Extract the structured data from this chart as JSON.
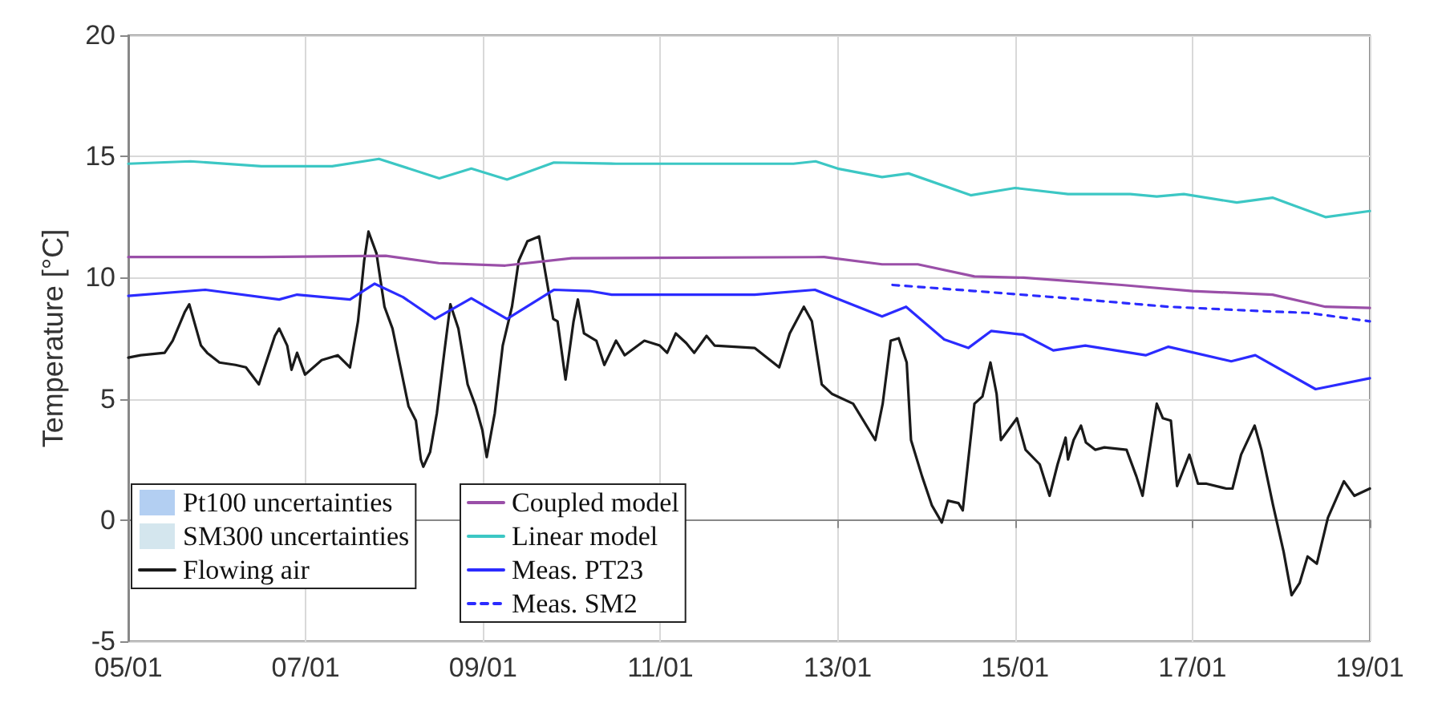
{
  "chart_data": {
    "type": "line",
    "ylabel": "Temperature [°C]",
    "xlim": [
      "--01-05",
      "--01-19"
    ],
    "xticks": [
      {
        "value": "--01-05",
        "label": "05/01"
      },
      {
        "value": "--01-07",
        "label": "07/01"
      },
      {
        "value": "--01-09",
        "label": "09/01"
      },
      {
        "value": "--01-11",
        "label": "11/01"
      },
      {
        "value": "--01-13",
        "label": "13/01"
      },
      {
        "value": "--01-15",
        "label": "15/01"
      },
      {
        "value": "--01-17",
        "label": "17/01"
      },
      {
        "value": "--01-19",
        "label": "19/01"
      }
    ],
    "ylim": [
      -5,
      20
    ],
    "yticks": [
      -5,
      0,
      5,
      10,
      15,
      20
    ],
    "grid": true,
    "legend": "bottom left",
    "series": [
      {
        "name": "Pt100 uncertainties",
        "type": "area",
        "color": "#b3cff2"
      },
      {
        "name": "SM300 uncertainties",
        "type": "area",
        "color": "#d4e6ee"
      },
      {
        "name": "Flowing air",
        "color": "#1a1a1a",
        "line_style": "solid",
        "x": [
          "--01-05T00:00",
          "--01-05T03:20",
          "--01-05T09:50",
          "--01-05T12:00",
          "--01-05T15:20",
          "--01-05T16:30",
          "--01-05T19:40",
          "--01-05T21:20",
          "--01-06T00:40",
          "--01-06T05:00",
          "--01-06T07:50",
          "--01-06T11:20",
          "--01-06T15:40",
          "--01-06T16:50",
          "--01-06T19:00",
          "--01-06T20:10",
          "--01-06T21:40",
          "--01-06T23:50",
          "--01-07T04:20",
          "--01-07T08:40",
          "--01-07T12:00",
          "--01-07T14:10",
          "--01-07T15:50",
          "--01-07T17:00",
          "--01-07T19:10",
          "--01-07T21:20",
          "--01-07T23:30",
          "--01-08T01:40",
          "--01-08T03:50",
          "--01-08T05:50",
          "--01-08T07:10",
          "--01-08T07:50",
          "--01-08T09:40",
          "--01-08T11:30",
          "--01-08T13:30",
          "--01-08T15:10",
          "--01-08T17:20",
          "--01-08T19:50",
          "--01-08T22:00",
          "--01-08T23:50",
          "--01-09T01:00",
          "--01-09T03:10",
          "--01-09T05:20",
          "--01-09T07:50",
          "--01-09T09:40",
          "--01-09T12:00",
          "--01-09T15:10",
          "--01-09T17:20",
          "--01-09T19:00",
          "--01-09T20:10",
          "--01-09T22:20",
          "--01-10T00:30",
          "--01-10T01:40",
          "--01-10T03:20",
          "--01-10T06:40",
          "--01-10T08:50",
          "--01-10T12:00",
          "--01-10T14:20",
          "--01-10T19:40",
          "--01-10T23:50",
          "--01-11T01:50",
          "--01-11T04:10",
          "--01-11T07:00",
          "--01-11T09:10",
          "--01-11T12:30",
          "--01-11T14:40",
          "--01-12T01:30",
          "--01-12T08:10",
          "--01-12T11:00",
          "--01-12T14:50",
          "--01-12T17:00",
          "--01-12T19:40",
          "--01-12T22:30",
          "--01-13T04:10",
          "--01-13T10:10",
          "--01-13T12:10",
          "--01-13T14:20",
          "--01-13T16:30",
          "--01-13T18:40",
          "--01-13T19:50",
          "--01-13T22:50",
          "--01-14T01:30",
          "--01-14T04:10",
          "--01-14T05:50",
          "--01-14T08:40",
          "--01-14T09:50",
          "--01-14T13:00",
          "--01-14T15:10",
          "--01-14T17:20",
          "--01-14T19:00",
          "--01-14T20:10",
          "--01-15T00:30",
          "--01-15T02:50",
          "--01-15T06:40",
          "--01-15T09:20",
          "--01-15T11:30",
          "--01-15T13:40",
          "--01-15T14:20",
          "--01-15T15:50",
          "--01-15T17:50",
          "--01-15T19:10",
          "--01-15T21:40",
          "--01-16T00:10",
          "--01-16T06:10",
          "--01-16T08:50",
          "--01-16T10:30",
          "--01-16T14:20",
          "--01-16T16:00",
          "--01-16T18:10",
          "--01-16T19:50",
          "--01-16T23:10",
          "--01-17T01:30",
          "--01-17T03:50",
          "--01-17T09:10",
          "--01-17T10:50",
          "--01-17T13:10",
          "--01-17T16:50",
          "--01-17T18:40",
          "--01-17T21:50",
          "--01-18T00:40",
          "--01-18T02:50",
          "--01-18T05:00",
          "--01-18T07:10",
          "--01-18T09:40",
          "--01-18T12:40",
          "--01-18T17:00",
          "--01-18T19:50",
          "--01-19T00:00"
        ],
        "values": [
          6.7,
          6.8,
          6.9,
          7.4,
          8.6,
          8.9,
          7.2,
          6.9,
          6.5,
          6.4,
          6.3,
          5.6,
          7.6,
          7.9,
          7.2,
          6.2,
          6.9,
          6.0,
          6.6,
          6.8,
          6.3,
          8.2,
          10.7,
          11.9,
          11.0,
          8.8,
          7.9,
          6.3,
          4.7,
          4.1,
          2.5,
          2.2,
          2.8,
          4.4,
          6.9,
          8.9,
          7.9,
          5.6,
          4.7,
          3.7,
          2.6,
          4.4,
          7.2,
          8.8,
          10.7,
          11.5,
          11.7,
          9.8,
          8.3,
          8.2,
          5.8,
          8.2,
          9.1,
          7.7,
          7.4,
          6.4,
          7.4,
          6.8,
          7.4,
          7.2,
          6.9,
          7.7,
          7.3,
          6.9,
          7.6,
          7.2,
          7.1,
          6.3,
          7.7,
          8.8,
          8.2,
          5.6,
          5.2,
          4.8,
          3.3,
          4.8,
          7.4,
          7.5,
          6.5,
          3.3,
          1.8,
          0.6,
          -0.1,
          0.8,
          0.7,
          0.4,
          4.8,
          5.1,
          6.5,
          5.2,
          3.3,
          4.2,
          2.9,
          2.3,
          1.0,
          2.3,
          3.4,
          2.5,
          3.3,
          3.9,
          3.2,
          2.9,
          3.0,
          2.9,
          1.8,
          1.0,
          4.8,
          4.2,
          4.1,
          1.4,
          2.7,
          1.5,
          1.5,
          1.3,
          1.3,
          2.7,
          3.9,
          2.9,
          0.6,
          -1.3,
          -3.1,
          -2.6,
          -1.5,
          -1.8,
          0.1,
          1.6,
          1.0,
          1.3
        ]
      },
      {
        "name": "Coupled model",
        "color": "#9a4fa8",
        "line_style": "solid",
        "x": [
          "--01-05T00:00",
          "--01-06T12:00",
          "--01-07T21:40",
          "--01-08T12:00",
          "--01-09T06:00",
          "--01-10T00:00",
          "--01-12T20:20",
          "--01-13T12:00",
          "--01-13T21:40",
          "--01-14T13:00",
          "--01-15T02:20",
          "--01-16T04:50",
          "--01-17T00:00",
          "--01-17T21:40",
          "--01-18T12:00",
          "--01-19T00:00"
        ],
        "values": [
          10.85,
          10.85,
          10.9,
          10.6,
          10.5,
          10.8,
          10.85,
          10.55,
          10.55,
          10.05,
          10.0,
          9.7,
          9.45,
          9.3,
          8.8,
          8.75
        ]
      },
      {
        "name": "Linear model",
        "color": "#3cc7c4",
        "line_style": "solid",
        "x": [
          "--01-05T00:00",
          "--01-05T16:50",
          "--01-06T12:00",
          "--01-07T07:10",
          "--01-07T19:50",
          "--01-08T12:10",
          "--01-08T20:50",
          "--01-09T06:30",
          "--01-09T19:10",
          "--01-10T12:00",
          "--01-12T12:00",
          "--01-12T18:00",
          "--01-13T00:00",
          "--01-13T12:00",
          "--01-13T19:10",
          "--01-14T12:00",
          "--01-15T00:00",
          "--01-15T14:20",
          "--01-16T07:10",
          "--01-16T14:20",
          "--01-16T21:40",
          "--01-17T12:00",
          "--01-17T21:40",
          "--01-18T12:00",
          "--01-19T00:00"
        ],
        "values": [
          14.7,
          14.8,
          14.6,
          14.6,
          14.9,
          14.1,
          14.5,
          14.05,
          14.75,
          14.7,
          14.7,
          14.8,
          14.5,
          14.15,
          14.3,
          13.4,
          13.7,
          13.45,
          13.45,
          13.35,
          13.45,
          13.1,
          13.3,
          12.5,
          12.75
        ]
      },
      {
        "name": "Meas. PT23",
        "color": "#2b2bff",
        "line_style": "solid",
        "x": [
          "--01-05T00:00",
          "--01-05T20:50",
          "--01-06T16:50",
          "--01-06T21:40",
          "--01-07T12:00",
          "--01-07T18:40",
          "--01-08T02:20",
          "--01-08T11:00",
          "--01-08T20:50",
          "--01-09T06:30",
          "--01-09T19:10",
          "--01-10T04:50",
          "--01-10T10:50",
          "--01-12T01:30",
          "--01-12T17:50",
          "--01-13T12:00",
          "--01-13T18:30",
          "--01-14T04:50",
          "--01-14T11:20",
          "--01-14T17:30",
          "--01-15T02:10",
          "--01-15T10:20",
          "--01-15T19:00",
          "--01-16T11:20",
          "--01-16T17:30",
          "--01-17T10:30",
          "--01-17T17:00",
          "--01-18T09:20",
          "--01-19T00:00"
        ],
        "values": [
          9.25,
          9.5,
          9.1,
          9.3,
          9.1,
          9.75,
          9.2,
          8.3,
          9.15,
          8.3,
          9.5,
          9.45,
          9.3,
          9.3,
          9.5,
          8.4,
          8.8,
          7.45,
          7.1,
          7.8,
          7.65,
          7.0,
          7.2,
          6.8,
          7.15,
          6.55,
          6.8,
          5.4,
          5.85
        ]
      },
      {
        "name": "Meas. SM2",
        "color": "#2b2bff",
        "line_style": "dashed",
        "x": [
          "--01-13T14:50",
          "--01-14T13:00",
          "--01-15T14:20",
          "--01-16T17:30",
          "--01-17T21:40",
          "--01-18T07:10",
          "--01-19T00:00"
        ],
        "values": [
          9.7,
          9.45,
          9.15,
          8.8,
          8.6,
          8.55,
          8.2
        ]
      }
    ]
  }
}
